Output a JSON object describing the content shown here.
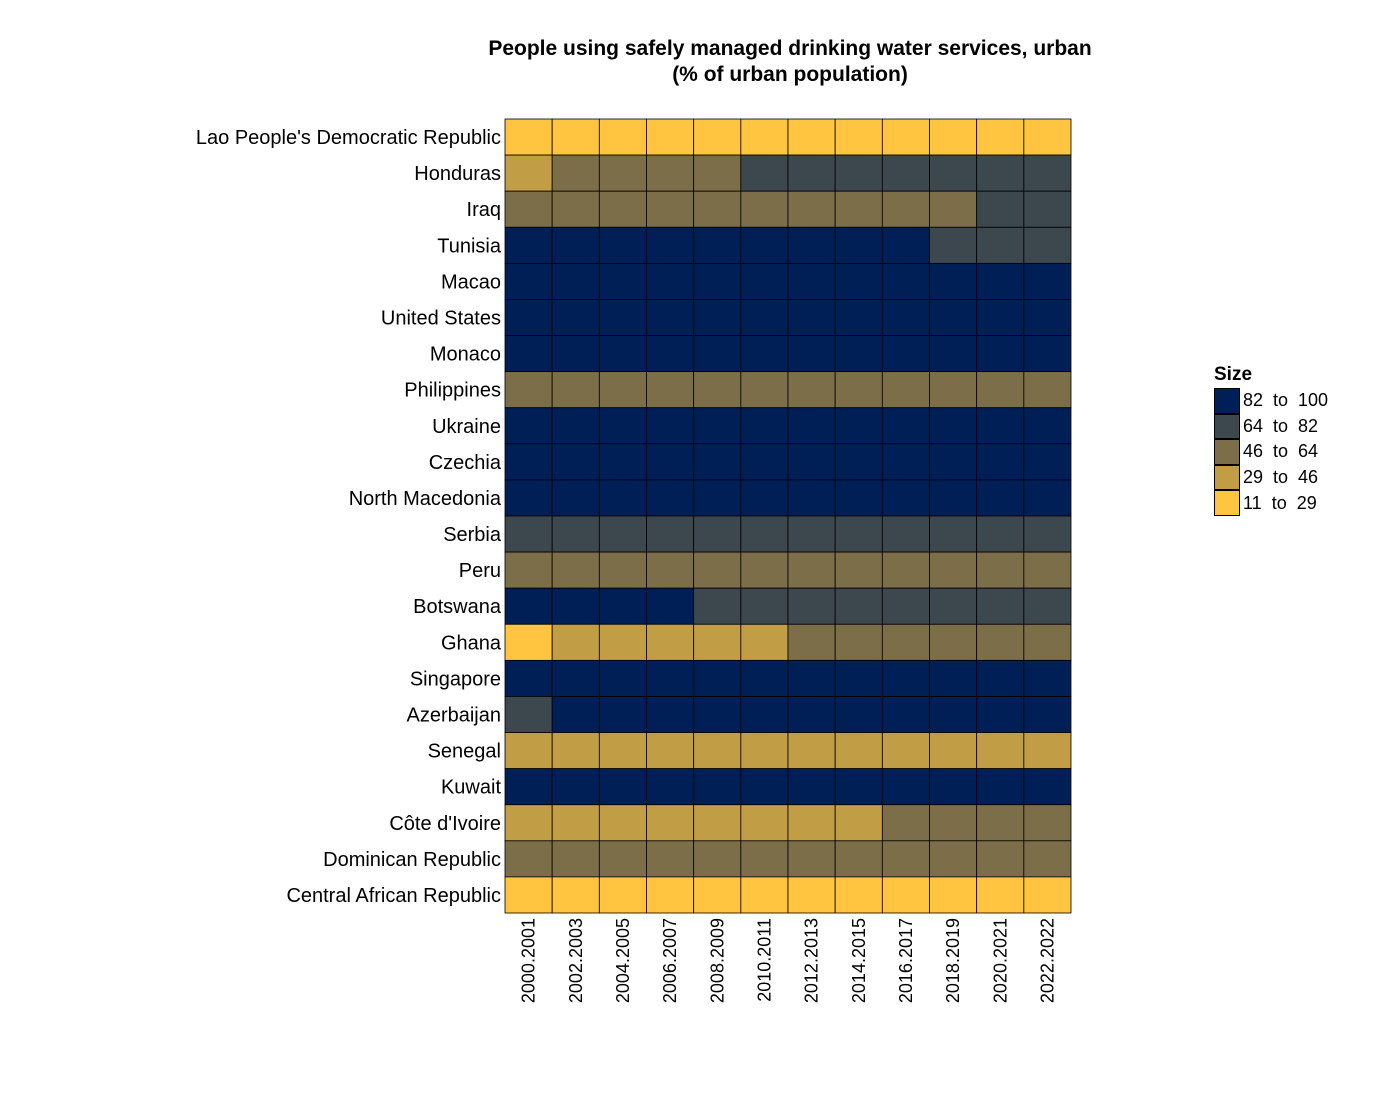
{
  "chart_data": {
    "type": "heatmap",
    "title": "People using safely managed drinking water services, urban",
    "subtitle": "(% of urban population)",
    "xlabel": "",
    "ylabel": "",
    "x_categories": [
      "2000.2001",
      "2002.2003",
      "2004.2005",
      "2006.2007",
      "2008.2009",
      "2010.2011",
      "2012.2013",
      "2014.2015",
      "2016.2017",
      "2018.2019",
      "2020.2021",
      "2022.2022"
    ],
    "y_categories": [
      "Lao People's Democratic Republic",
      "Honduras",
      "Iraq",
      "Tunisia",
      "Macao",
      "United States",
      "Monaco",
      "Philippines",
      "Ukraine",
      "Czechia",
      "North Macedonia",
      "Serbia",
      "Peru",
      "Botswana",
      "Ghana",
      "Singapore",
      "Azerbaijan",
      "Senegal",
      "Kuwait",
      "Côte d'Ivoire",
      "Dominican Republic",
      "Central African Republic"
    ],
    "bin_matrix": [
      [
        4,
        4,
        4,
        4,
        4,
        4,
        4,
        4,
        4,
        4,
        4,
        4
      ],
      [
        3,
        2,
        2,
        2,
        2,
        1,
        1,
        1,
        1,
        1,
        1,
        1
      ],
      [
        2,
        2,
        2,
        2,
        2,
        2,
        2,
        2,
        2,
        2,
        1,
        1
      ],
      [
        0,
        0,
        0,
        0,
        0,
        0,
        0,
        0,
        0,
        1,
        1,
        1
      ],
      [
        0,
        0,
        0,
        0,
        0,
        0,
        0,
        0,
        0,
        0,
        0,
        0
      ],
      [
        0,
        0,
        0,
        0,
        0,
        0,
        0,
        0,
        0,
        0,
        0,
        0
      ],
      [
        0,
        0,
        0,
        0,
        0,
        0,
        0,
        0,
        0,
        0,
        0,
        0
      ],
      [
        2,
        2,
        2,
        2,
        2,
        2,
        2,
        2,
        2,
        2,
        2,
        2
      ],
      [
        0,
        0,
        0,
        0,
        0,
        0,
        0,
        0,
        0,
        0,
        0,
        0
      ],
      [
        0,
        0,
        0,
        0,
        0,
        0,
        0,
        0,
        0,
        0,
        0,
        0
      ],
      [
        0,
        0,
        0,
        0,
        0,
        0,
        0,
        0,
        0,
        0,
        0,
        0
      ],
      [
        1,
        1,
        1,
        1,
        1,
        1,
        1,
        1,
        1,
        1,
        1,
        1
      ],
      [
        2,
        2,
        2,
        2,
        2,
        2,
        2,
        2,
        2,
        2,
        2,
        2
      ],
      [
        0,
        0,
        0,
        0,
        1,
        1,
        1,
        1,
        1,
        1,
        1,
        1
      ],
      [
        4,
        3,
        3,
        3,
        3,
        3,
        2,
        2,
        2,
        2,
        2,
        2
      ],
      [
        0,
        0,
        0,
        0,
        0,
        0,
        0,
        0,
        0,
        0,
        0,
        0
      ],
      [
        1,
        0,
        0,
        0,
        0,
        0,
        0,
        0,
        0,
        0,
        0,
        0
      ],
      [
        3,
        3,
        3,
        3,
        3,
        3,
        3,
        3,
        3,
        3,
        3,
        3
      ],
      [
        0,
        0,
        0,
        0,
        0,
        0,
        0,
        0,
        0,
        0,
        0,
        0
      ],
      [
        3,
        3,
        3,
        3,
        3,
        3,
        3,
        3,
        2,
        2,
        2,
        2
      ],
      [
        2,
        2,
        2,
        2,
        2,
        2,
        2,
        2,
        2,
        2,
        2,
        2
      ],
      [
        4,
        4,
        4,
        4,
        4,
        4,
        4,
        4,
        4,
        4,
        4,
        4
      ]
    ],
    "legend": {
      "title": "Size",
      "placement": "right",
      "bins": [
        {
          "label": "82  to  100",
          "range": [
            82,
            100
          ],
          "color": "#001f57"
        },
        {
          "label": "64  to  82",
          "range": [
            64,
            82
          ],
          "color": "#3d474e"
        },
        {
          "label": "46  to  64",
          "range": [
            46,
            64
          ],
          "color": "#7d6e4a"
        },
        {
          "label": "29  to  46",
          "range": [
            29,
            46
          ],
          "color": "#c19d45"
        },
        {
          "label": "11  to  29",
          "range": [
            11,
            29
          ],
          "color": "#ffc440"
        }
      ]
    },
    "grid": false
  }
}
